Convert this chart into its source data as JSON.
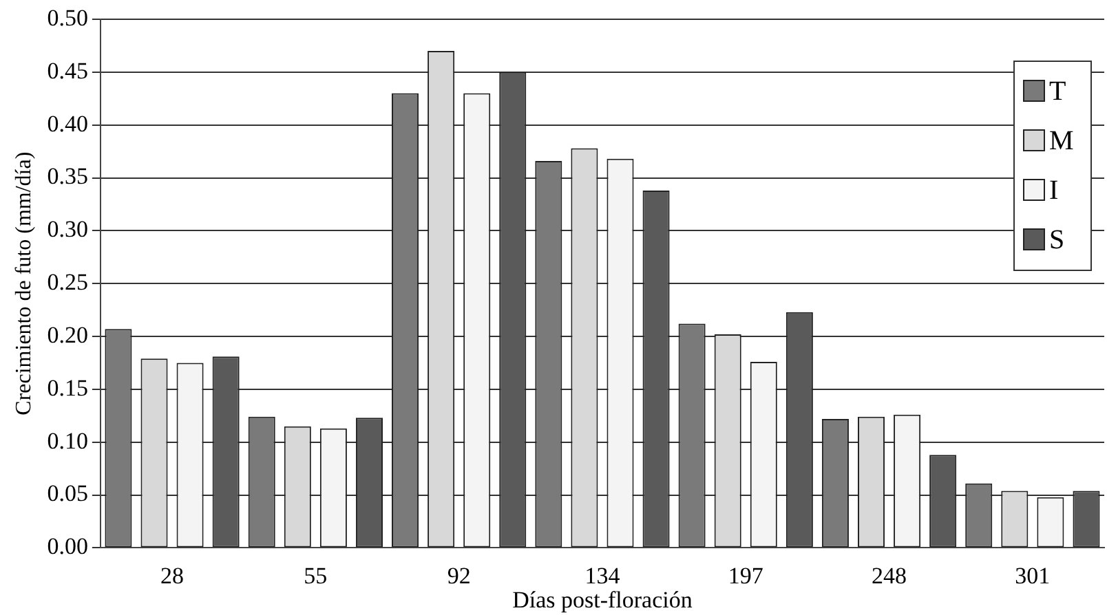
{
  "chart_data": {
    "type": "bar",
    "xlabel": "Días post-floración",
    "ylabel": "Crecimiento de futo (mm/día)",
    "categories": [
      "28",
      "55",
      "92",
      "134",
      "197",
      "248",
      "301"
    ],
    "series": [
      {
        "name": "T",
        "color": "#7a7a7a",
        "values": [
          0.207,
          0.124,
          0.43,
          0.366,
          0.212,
          0.122,
          0.061
        ]
      },
      {
        "name": "M",
        "color": "#d8d8d8",
        "values": [
          0.179,
          0.115,
          0.47,
          0.378,
          0.202,
          0.124,
          0.054
        ]
      },
      {
        "name": "I",
        "color": "#f4f4f4",
        "values": [
          0.175,
          0.113,
          0.43,
          0.368,
          0.176,
          0.126,
          0.048
        ]
      },
      {
        "name": "S",
        "color": "#5a5a5a",
        "values": [
          0.181,
          0.123,
          0.45,
          0.338,
          0.223,
          0.088,
          0.054
        ]
      }
    ],
    "ylim": [
      0,
      0.5
    ],
    "yticks": [
      {
        "value": 0,
        "label": "0.00"
      },
      {
        "value": 0.05,
        "label": "0.05"
      },
      {
        "value": 0.1,
        "label": "0.10"
      },
      {
        "value": 0.15,
        "label": "0.15"
      },
      {
        "value": 0.2,
        "label": "0.20"
      },
      {
        "value": 0.25,
        "label": "0.25"
      },
      {
        "value": 0.3,
        "label": "0.30"
      },
      {
        "value": 0.35,
        "label": "0.35"
      },
      {
        "value": 0.4,
        "label": "0.40"
      },
      {
        "value": 0.45,
        "label": "0.45"
      },
      {
        "value": 0.5,
        "label": "0.50"
      }
    ],
    "grid": "y",
    "legend": "top right"
  }
}
